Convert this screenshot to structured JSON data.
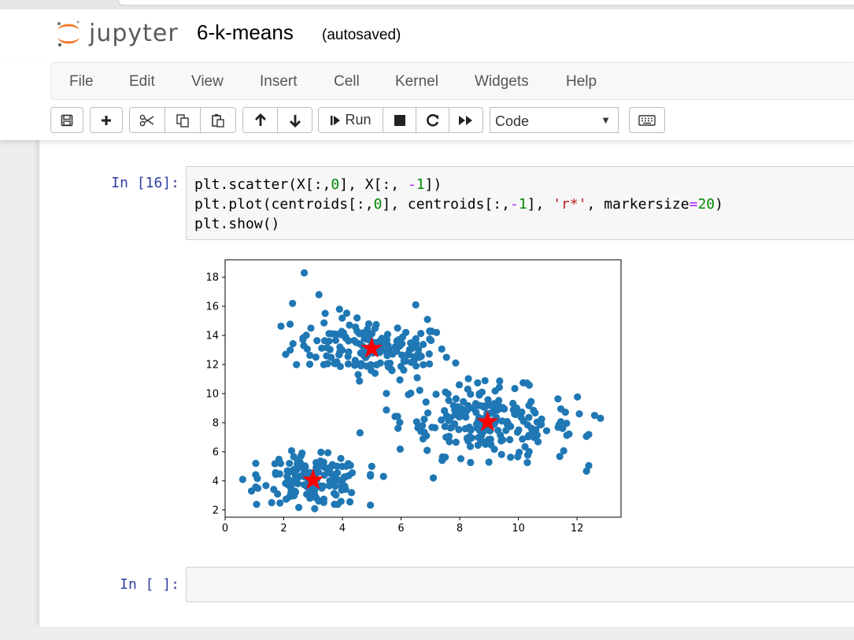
{
  "header": {
    "logo_text": "jupyter",
    "notebook_name": "6-k-means",
    "save_status": "(autosaved)"
  },
  "menu": [
    "File",
    "Edit",
    "View",
    "Insert",
    "Cell",
    "Kernel",
    "Widgets",
    "Help"
  ],
  "toolbar": {
    "run_label": "Run",
    "cell_type": "Code",
    "buttons": [
      "save-icon",
      "plus-icon",
      "cut-icon",
      "copy-icon",
      "paste-icon",
      "arrow-up-icon",
      "arrow-down-icon",
      "step-forward-icon",
      "stop-icon",
      "restart-icon",
      "fast-forward-icon",
      "keyboard-icon"
    ]
  },
  "cells": [
    {
      "prompt": "In [16]:",
      "lines": [
        {
          "a": "plt.scatter(X[:,",
          "n1": "0",
          "b": "], X[:, ",
          "op": "-",
          "n2": "1",
          "c": "])"
        },
        {
          "a": "plt.plot(centroids[:,",
          "n1": "0",
          "b": "], centroids[:,",
          "op": "-",
          "n2": "1",
          "c": "], ",
          "s": "'r*'",
          "d": ", markersize",
          "eq": "=",
          "n3": "20",
          "e": ")"
        },
        {
          "a": "plt.show()"
        }
      ]
    },
    {
      "prompt": "In [ ]:",
      "lines": []
    }
  ],
  "chart_data": {
    "type": "scatter",
    "xlim": [
      0,
      13.5
    ],
    "ylim": [
      1.5,
      19.2
    ],
    "xticks": [
      0,
      2,
      4,
      6,
      8,
      10,
      12
    ],
    "yticks": [
      2,
      4,
      6,
      8,
      10,
      12,
      14,
      16,
      18
    ],
    "point_color": "#1f77b4",
    "centroid_color": "#ff0000",
    "clusters": [
      {
        "center": [
          5.0,
          13.1
        ],
        "spread": [
          1.35,
          1.0
        ],
        "count": 170
      },
      {
        "center": [
          8.95,
          8.05
        ],
        "spread": [
          1.5,
          1.25
        ],
        "count": 220
      },
      {
        "center": [
          3.0,
          4.05
        ],
        "spread": [
          0.85,
          0.85
        ],
        "count": 150
      }
    ],
    "centroids": [
      {
        "x": 5.0,
        "y": 13.1
      },
      {
        "x": 8.95,
        "y": 8.05
      },
      {
        "x": 3.0,
        "y": 4.05
      }
    ],
    "outliers": [
      [
        2.7,
        18.3
      ],
      [
        3.2,
        16.8
      ],
      [
        2.3,
        16.2
      ],
      [
        3.9,
        15.8
      ],
      [
        6.5,
        16.1
      ],
      [
        6.9,
        15.1
      ],
      [
        0.6,
        4.1
      ],
      [
        0.9,
        3.3
      ],
      [
        4.6,
        7.3
      ],
      [
        5.4,
        4.3
      ],
      [
        5.0,
        5.0
      ],
      [
        12.6,
        8.5
      ],
      [
        12.8,
        8.3
      ],
      [
        7.1,
        4.2
      ]
    ]
  }
}
